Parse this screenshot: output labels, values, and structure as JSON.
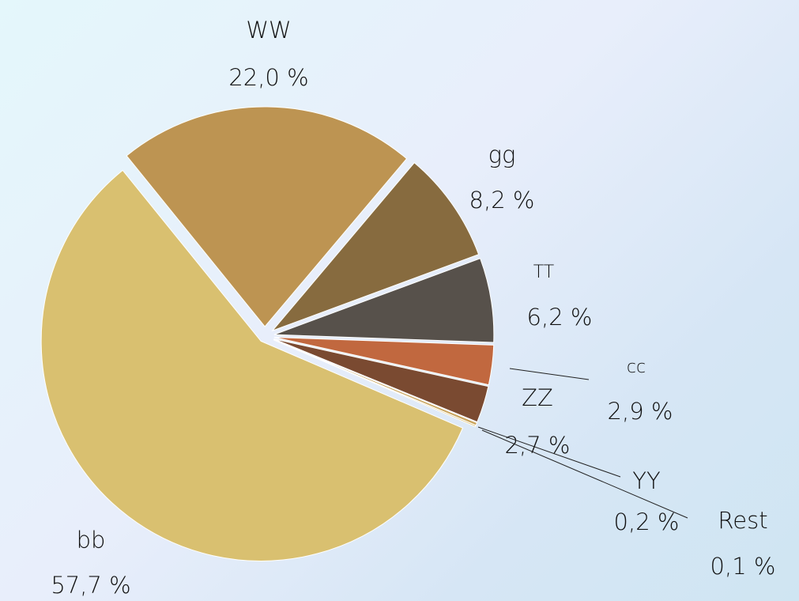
{
  "chart_data": {
    "type": "pie",
    "categories": [
      "WW",
      "gg",
      "TT",
      "cc",
      "ZZ",
      "YY",
      "Rest",
      "bb"
    ],
    "values": [
      22.0,
      8.2,
      6.2,
      2.9,
      2.7,
      0.2,
      0.1,
      57.7
    ],
    "value_labels": [
      "22,0 %",
      "8,2 %",
      "6,2 %",
      "2,9 %",
      "2,7 %",
      "0,2 %",
      "0,1 %",
      "57,7 %"
    ],
    "colors": [
      "#bd9452",
      "#876b3f",
      "#57514b",
      "#c1683f",
      "#7a4a31",
      "#c9a45c",
      "#dcc27a",
      "#d9c070"
    ]
  }
}
